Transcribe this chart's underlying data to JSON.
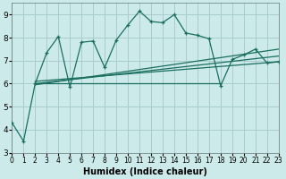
{
  "xlabel": "Humidex (Indice chaleur)",
  "bg_color": "#cceaea",
  "grid_color": "#aacccc",
  "line_color": "#1a6e60",
  "xlim": [
    0,
    23
  ],
  "ylim": [
    3,
    9.5
  ],
  "yticks": [
    3,
    4,
    5,
    6,
    7,
    8,
    9
  ],
  "xticks": [
    0,
    1,
    2,
    3,
    4,
    5,
    6,
    7,
    8,
    9,
    10,
    11,
    12,
    13,
    14,
    15,
    16,
    17,
    18,
    19,
    20,
    21,
    22,
    23
  ],
  "series1_x": [
    0,
    1,
    2,
    3,
    4,
    5,
    6,
    7,
    8,
    9,
    10,
    11,
    12,
    13,
    14,
    15,
    16,
    17,
    18,
    19,
    20,
    21,
    22,
    23
  ],
  "series1_y": [
    4.3,
    3.5,
    6.0,
    7.35,
    8.05,
    5.85,
    7.8,
    7.85,
    6.7,
    7.9,
    8.55,
    9.15,
    8.7,
    8.65,
    9.0,
    8.2,
    8.1,
    7.95,
    5.9,
    7.05,
    7.25,
    7.5,
    6.9,
    6.95
  ],
  "series2_x": [
    2,
    18
  ],
  "series2_y": [
    6.0,
    6.0
  ],
  "series3_x": [
    2,
    23
  ],
  "series3_y": [
    5.95,
    7.5
  ],
  "series4_x": [
    2,
    23
  ],
  "series4_y": [
    6.0,
    7.2
  ],
  "series5_x": [
    2,
    23
  ],
  "series5_y": [
    6.1,
    6.95
  ]
}
